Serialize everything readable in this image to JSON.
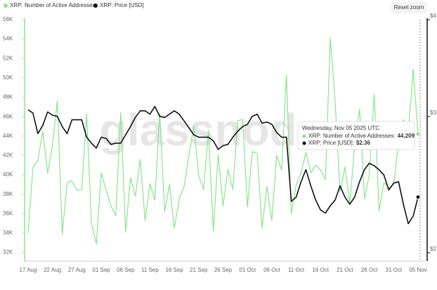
{
  "chart_data": {
    "type": "line",
    "legend": [
      "XRP: Number of Active Addresses",
      "XRP: Price [USD]"
    ],
    "reset_button": "Reset zoom",
    "watermark": "glassnode",
    "categories": [
      "17 Aug",
      null,
      null,
      null,
      null,
      "22 Aug",
      null,
      null,
      null,
      null,
      "27 Aug",
      null,
      null,
      null,
      null,
      "01 Sep",
      null,
      null,
      null,
      null,
      "06 Sep",
      null,
      null,
      null,
      null,
      "11 Sep",
      null,
      null,
      null,
      null,
      "16 Sep",
      null,
      null,
      null,
      null,
      "21 Sep",
      null,
      null,
      null,
      null,
      "26 Sep",
      null,
      null,
      null,
      null,
      "01 Oct",
      null,
      null,
      null,
      null,
      "06 Oct",
      null,
      null,
      null,
      null,
      "11 Oct",
      null,
      null,
      null,
      null,
      "16 Oct",
      null,
      null,
      null,
      null,
      "21 Oct",
      null,
      null,
      null,
      null,
      "26 Oct",
      null,
      null,
      null,
      null,
      "31 Oct",
      null,
      null,
      null,
      null,
      "05 Nov"
    ],
    "series": [
      {
        "name": "XRP: Number of Active Addresses",
        "color": "#86e68a",
        "axis": "y",
        "values": [
          34000,
          40800,
          41500,
          44500,
          40200,
          43000,
          47600,
          33900,
          39200,
          39400,
          38400,
          38500,
          46300,
          35000,
          32900,
          40200,
          38500,
          36800,
          35800,
          46400,
          34100,
          39700,
          37800,
          41600,
          35300,
          39100,
          37400,
          46400,
          36200,
          39000,
          34500,
          37500,
          38800,
          42000,
          45000,
          39900,
          38500,
          44600,
          34200,
          42100,
          36800,
          40600,
          38500,
          45600,
          45700,
          36700,
          42400,
          42200,
          34500,
          38800,
          35300,
          42000,
          40500,
          50300,
          36000,
          39000,
          40200,
          42300,
          40200,
          41000,
          40500,
          39500,
          54100,
          47500,
          38200,
          40800,
          37000,
          43000,
          46800,
          37500,
          40000,
          48300,
          36300,
          39200,
          38700,
          39000,
          43300,
          45700,
          44300,
          50900,
          44209
        ]
      },
      {
        "name": "XRP: Price [USD]",
        "color": "#111111",
        "axis": "y2",
        "values": [
          3.06,
          3.03,
          2.85,
          2.92,
          3.04,
          3.01,
          3.0,
          2.91,
          2.85,
          2.97,
          2.97,
          2.97,
          2.82,
          2.77,
          2.73,
          2.82,
          2.81,
          2.76,
          2.77,
          2.77,
          2.84,
          2.91,
          2.99,
          3.05,
          3.05,
          3.02,
          3.09,
          3.0,
          2.99,
          3.02,
          3.05,
          3.02,
          2.96,
          2.9,
          2.84,
          2.82,
          2.82,
          2.82,
          2.79,
          2.72,
          2.75,
          2.76,
          2.82,
          2.87,
          2.91,
          2.93,
          3.0,
          3.02,
          2.94,
          2.95,
          2.93,
          2.86,
          2.82,
          2.82,
          2.33,
          2.36,
          2.47,
          2.56,
          2.44,
          2.34,
          2.27,
          2.25,
          2.3,
          2.34,
          2.44,
          2.36,
          2.31,
          2.36,
          2.47,
          2.56,
          2.61,
          2.59,
          2.56,
          2.52,
          2.41,
          2.46,
          2.47,
          2.31,
          2.18,
          2.23,
          2.36
        ]
      }
    ],
    "ylim": [
      31100,
      56000
    ],
    "yticks": [
      {
        "value": 32000,
        "label": "32K"
      },
      {
        "value": 34000,
        "label": "34K"
      },
      {
        "value": 36000,
        "label": "36K"
      },
      {
        "value": 38000,
        "label": "38K"
      },
      {
        "value": 40000,
        "label": "40K"
      },
      {
        "value": 42000,
        "label": "42K"
      },
      {
        "value": 44000,
        "label": "44K"
      },
      {
        "value": 46000,
        "label": "46K"
      },
      {
        "value": 48000,
        "label": "48K"
      },
      {
        "value": 50000,
        "label": "50K"
      },
      {
        "value": 52000,
        "label": "52K"
      },
      {
        "value": 54000,
        "label": "54K"
      },
      {
        "value": 56000,
        "label": "56K"
      }
    ],
    "y2lim": [
      1.95,
      4
    ],
    "y2ticks": [
      {
        "value": 2,
        "label": "$2"
      },
      {
        "value": 3,
        "label": "$3"
      },
      {
        "value": 4,
        "label": "$4"
      }
    ],
    "y2log": true,
    "tooltip": {
      "title": "Wednesday, Nov 05 2025 UTC",
      "rows": [
        {
          "label": "XRP: Number of Active Addresses:",
          "value": "44,209"
        },
        {
          "label": "XRP: Price [USD]:",
          "value": "$2.36"
        }
      ]
    }
  }
}
